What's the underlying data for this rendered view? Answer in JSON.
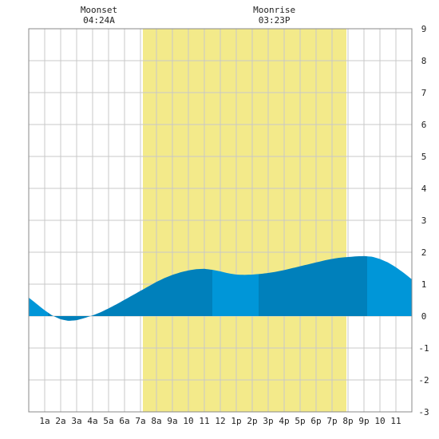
{
  "chart_data": {
    "type": "area",
    "title": "",
    "xlabel": "",
    "ylabel": "",
    "x_tick_labels": [
      "1a",
      "2a",
      "3a",
      "4a",
      "5a",
      "6a",
      "7a",
      "8a",
      "9a",
      "10",
      "11",
      "12",
      "1p",
      "2p",
      "3p",
      "4p",
      "5p",
      "6p",
      "7p",
      "8p",
      "9p",
      "10",
      "11"
    ],
    "ylim": [
      -3,
      9
    ],
    "y_ticks": [
      -3,
      -2,
      -1,
      0,
      1,
      2,
      3,
      4,
      5,
      6,
      7,
      8,
      9
    ],
    "xlim_hours": [
      0,
      24
    ],
    "grid": true,
    "daylight_hours": [
      7.15,
      19.9
    ],
    "colors": {
      "daylight": "#f3ea8a",
      "tide_dark": "#0080bb",
      "tide_light": "#0096d8",
      "grid": "#c8c8c8"
    },
    "tide_curve": {
      "x_hours": [
        0,
        0.5,
        1,
        1.5,
        2,
        2.5,
        3,
        3.5,
        4,
        4.5,
        5,
        5.5,
        6,
        6.5,
        7,
        7.5,
        8,
        8.5,
        9,
        9.5,
        10,
        10.5,
        11,
        11.5,
        12,
        12.5,
        13,
        13.5,
        14,
        14.5,
        15,
        15.5,
        16,
        16.5,
        17,
        17.5,
        18,
        18.5,
        19,
        19.5,
        20,
        20.5,
        21,
        21.5,
        22,
        22.5,
        23,
        23.5,
        24
      ],
      "y_feet": [
        0.58,
        0.38,
        0.18,
        0.01,
        -0.1,
        -0.15,
        -0.13,
        -0.06,
        0.02,
        0.12,
        0.24,
        0.37,
        0.51,
        0.65,
        0.79,
        0.93,
        1.07,
        1.19,
        1.29,
        1.37,
        1.43,
        1.47,
        1.48,
        1.45,
        1.4,
        1.34,
        1.3,
        1.29,
        1.3,
        1.32,
        1.35,
        1.39,
        1.44,
        1.5,
        1.56,
        1.62,
        1.68,
        1.74,
        1.79,
        1.83,
        1.85,
        1.87,
        1.88,
        1.86,
        1.79,
        1.68,
        1.53,
        1.35,
        1.15
      ]
    },
    "bands": [
      {
        "start": 0,
        "end": 1.2,
        "shade": "light"
      },
      {
        "start": 1.2,
        "end": 11.5,
        "shade": "dark"
      },
      {
        "start": 11.5,
        "end": 14.4,
        "shade": "light"
      },
      {
        "start": 14.4,
        "end": 21.2,
        "shade": "dark"
      },
      {
        "start": 21.2,
        "end": 24,
        "shade": "light"
      }
    ],
    "annotations": [
      {
        "label": "Moonset",
        "time": "04:24A",
        "hour": 4.4
      },
      {
        "label": "Moonrise",
        "time": "03:23P",
        "hour": 15.38
      }
    ]
  }
}
